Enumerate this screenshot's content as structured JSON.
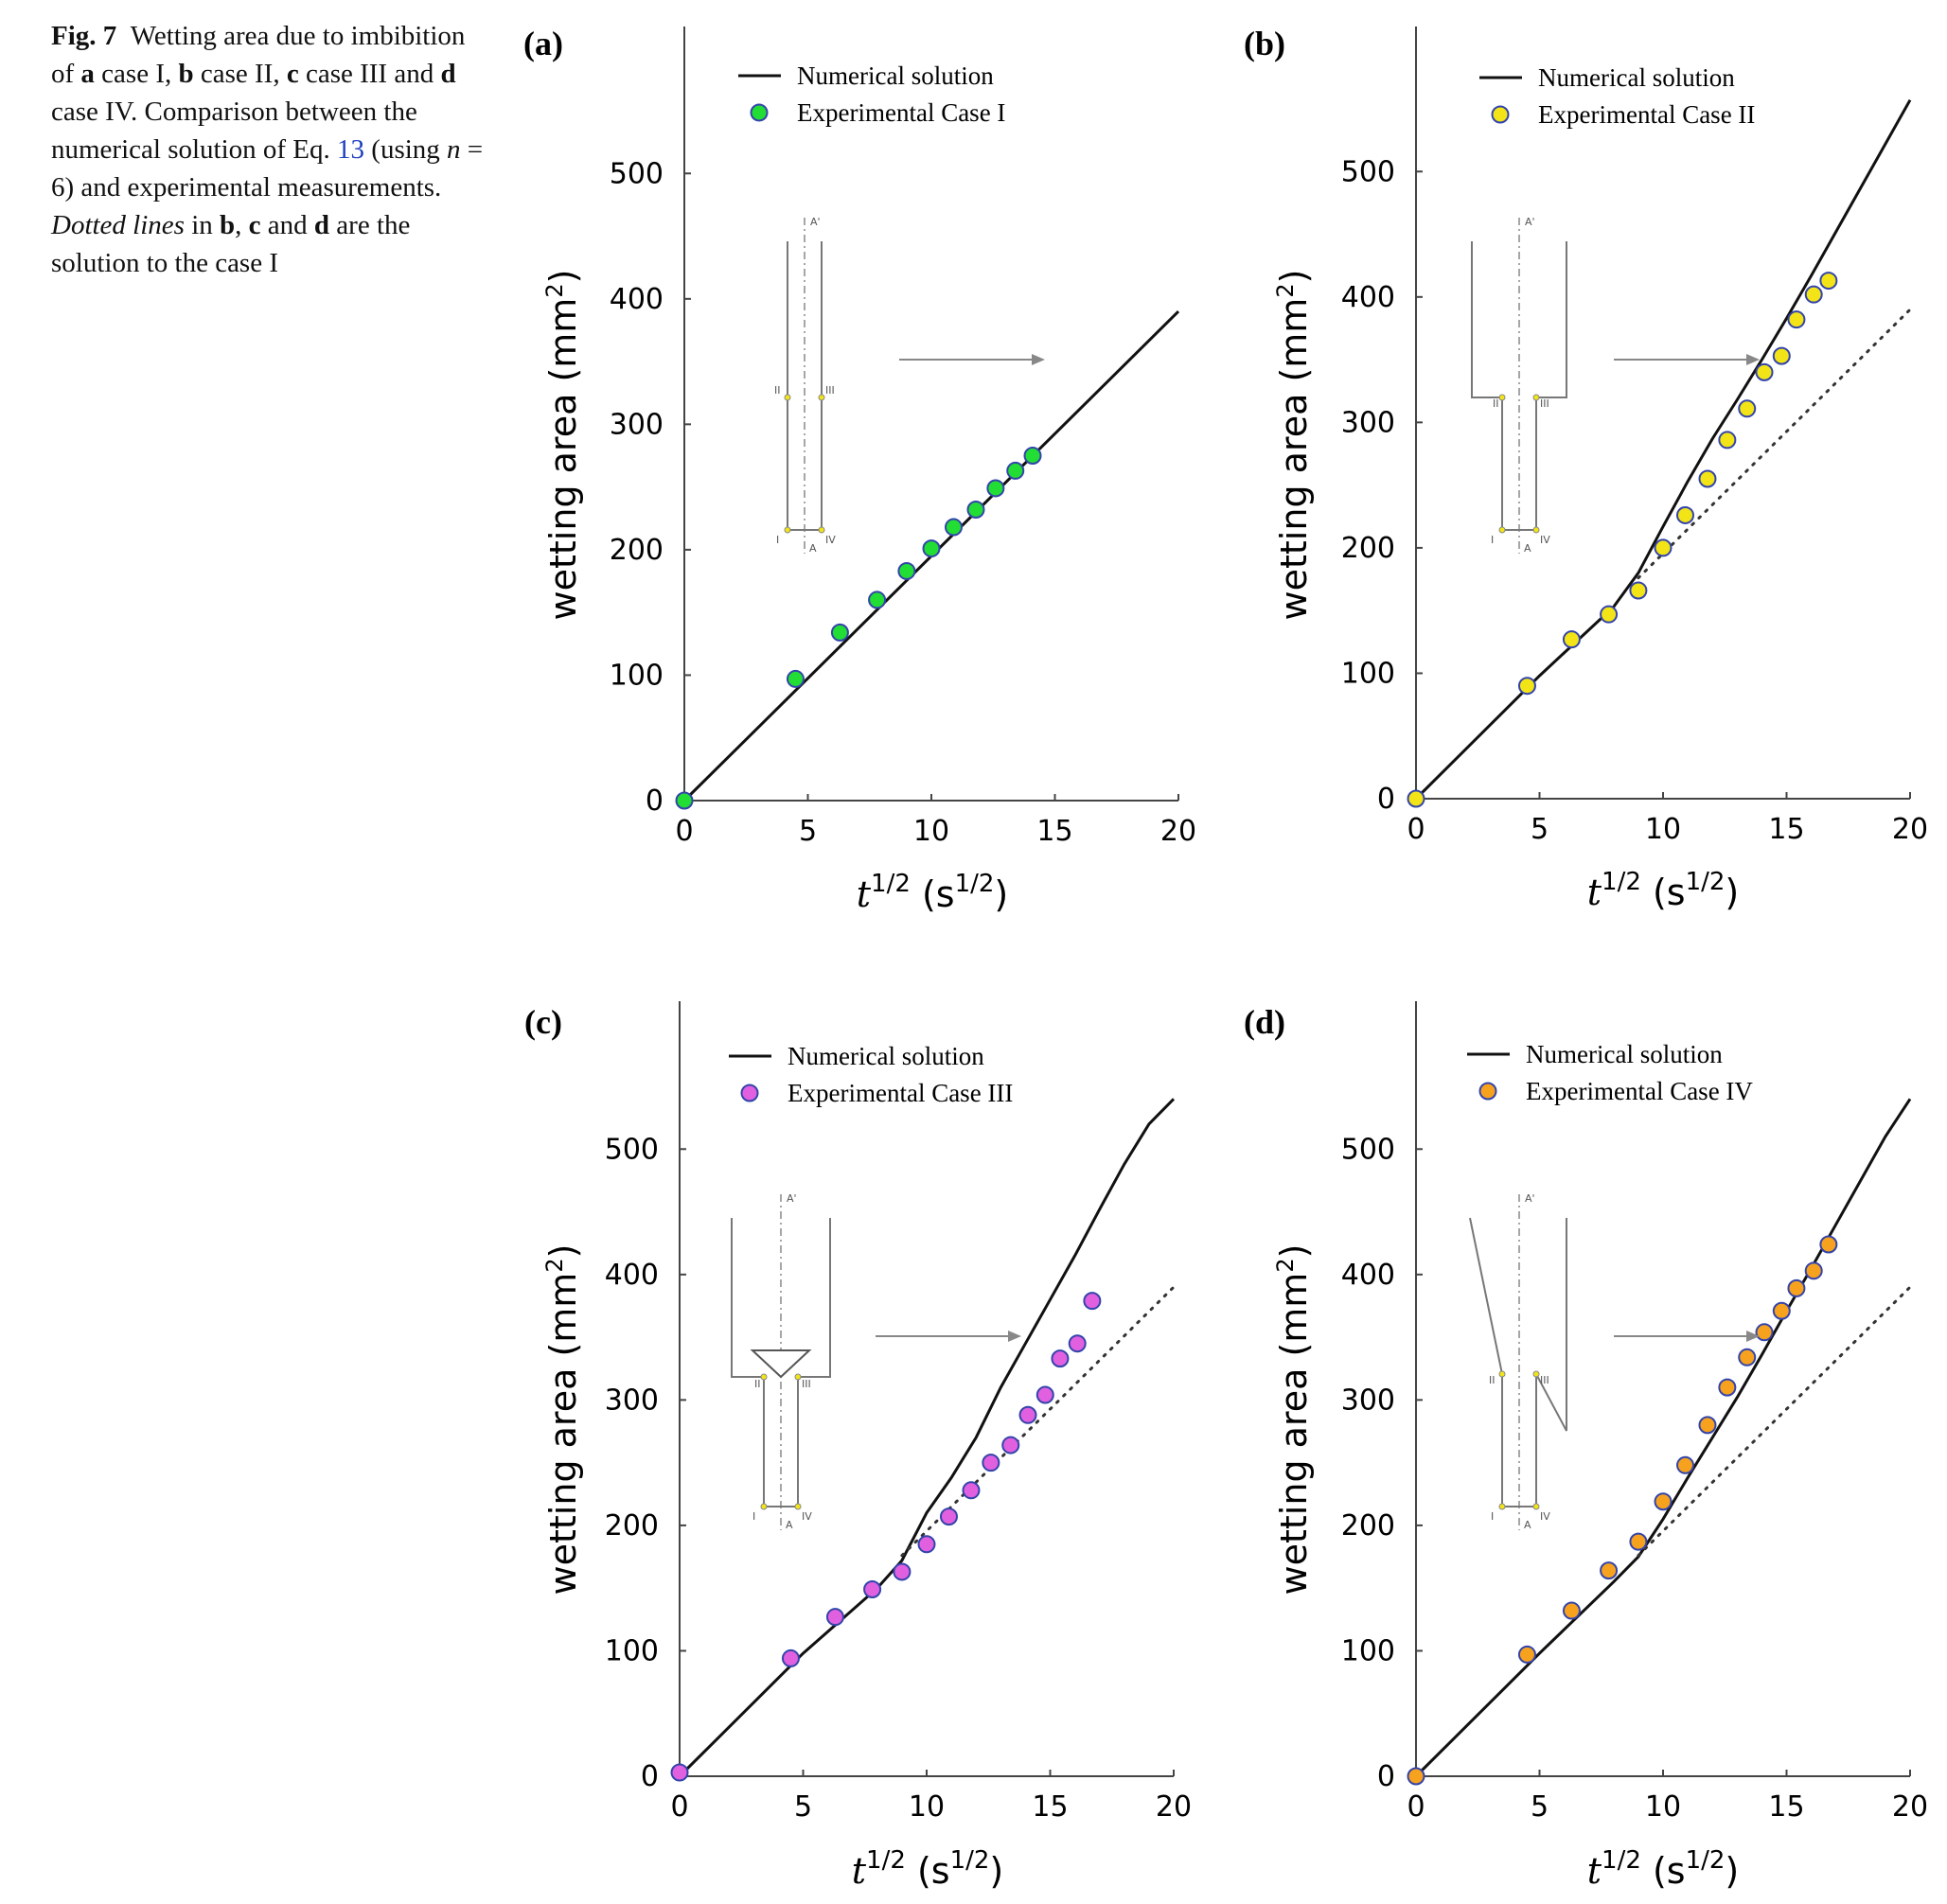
{
  "caption": {
    "fig_label": "Fig. 7",
    "text_1": "Wetting area due to imbibition of ",
    "a": "a",
    "t_a": " case I, ",
    "b": "b",
    "t_b": " case II, ",
    "c": "c",
    "t_c": " case III and ",
    "d": "d",
    "t_d": " case IV. Comparison between the numerical solution of Eq. ",
    "eq": "13",
    "t_eq": " (using ",
    "n": "n",
    "t_n": " = 6) and experimental measurements. ",
    "dotted": "Dotted lines",
    "t_in": " in ",
    "b2": "b",
    "comma": ", ",
    "c2": "c",
    "and": " and ",
    "d2": "d",
    "t_end": " are the solution to the case I"
  },
  "colors": {
    "case_I": "#22dd33",
    "case_II": "#f2e416",
    "case_III": "#e060e0",
    "case_IV": "#f6a21e",
    "marker_edge": "#3344aa",
    "line": "#111111"
  },
  "chart_data": [
    {
      "type": "line",
      "panel": "(a)",
      "xlabel": "t1/2 (s1/2)",
      "ylabel": "wetting area (mm2)",
      "xlim": [
        0,
        20
      ],
      "ylim": [
        0,
        550
      ],
      "xticks": [
        0,
        5,
        10,
        15,
        20
      ],
      "yticks": [
        0,
        100,
        200,
        300,
        400,
        500
      ],
      "legend": [
        "Numerical solution",
        "Experimental Case I"
      ],
      "series": [
        {
          "name": "Numerical solution",
          "style": "solid",
          "x": [
            0,
            20
          ],
          "y": [
            0,
            390
          ]
        },
        {
          "name": "Experimental Case I",
          "style": "markers",
          "color": "#22dd33",
          "x": [
            0,
            4.5,
            6.3,
            7.8,
            9.0,
            10.0,
            10.9,
            11.8,
            12.6,
            13.4,
            14.1
          ],
          "y": [
            0,
            97,
            134,
            160,
            183,
            201,
            218,
            232,
            249,
            263,
            275
          ]
        }
      ]
    },
    {
      "type": "line",
      "panel": "(b)",
      "xlabel": "t1/2 (s1/2)",
      "ylabel": "wetting area (mm2)",
      "xlim": [
        0,
        20
      ],
      "ylim": [
        0,
        550
      ],
      "xticks": [
        0,
        5,
        10,
        15,
        20
      ],
      "yticks": [
        0,
        100,
        200,
        300,
        400,
        500
      ],
      "legend": [
        "Numerical solution",
        "Experimental Case II"
      ],
      "series": [
        {
          "name": "Numerical solution",
          "style": "solid",
          "x": [
            0,
            5,
            8,
            9,
            10,
            11,
            12,
            13,
            14,
            15,
            16,
            17,
            18,
            19,
            20
          ],
          "y": [
            0,
            98,
            153,
            180,
            217,
            253,
            287,
            318,
            350,
            383,
            417,
            452,
            487,
            522,
            557
          ]
        },
        {
          "name": "Case I solution",
          "style": "dotted",
          "x": [
            9,
            20
          ],
          "y": [
            176,
            390
          ]
        },
        {
          "name": "Experimental Case II",
          "style": "markers",
          "color": "#f2e416",
          "x": [
            0,
            4.5,
            6.3,
            7.8,
            9.0,
            10.0,
            10.9,
            11.8,
            12.6,
            13.4,
            14.1,
            14.8,
            15.4,
            16.1,
            16.7
          ],
          "y": [
            0,
            90,
            127,
            147,
            166,
            200,
            226,
            255,
            286,
            311,
            340,
            353,
            382,
            402,
            413
          ]
        }
      ]
    },
    {
      "type": "line",
      "panel": "(c)",
      "xlabel": "t1/2 (s1/2)",
      "ylabel": "wetting area (mm2)",
      "xlim": [
        0,
        20
      ],
      "ylim": [
        0,
        550
      ],
      "xticks": [
        0,
        5,
        10,
        15,
        20
      ],
      "yticks": [
        0,
        100,
        200,
        300,
        400,
        500
      ],
      "legend": [
        "Numerical solution",
        "Experimental Case III"
      ],
      "series": [
        {
          "name": "Numerical solution",
          "style": "solid",
          "x": [
            0,
            5,
            8,
            9,
            10,
            11,
            12,
            13,
            14,
            15,
            16,
            17,
            18,
            19,
            20
          ],
          "y": [
            0,
            98,
            150,
            172,
            210,
            238,
            270,
            310,
            345,
            380,
            415,
            452,
            488,
            520,
            540
          ]
        },
        {
          "name": "Case I solution",
          "style": "dotted",
          "x": [
            9,
            20
          ],
          "y": [
            176,
            390
          ]
        },
        {
          "name": "Experimental Case III",
          "style": "markers",
          "color": "#e060e0",
          "x": [
            0,
            4.5,
            6.3,
            7.8,
            9.0,
            10.0,
            10.9,
            11.8,
            12.6,
            13.4,
            14.1,
            14.8,
            15.4,
            16.1,
            16.7
          ],
          "y": [
            3,
            94,
            127,
            149,
            163,
            185,
            207,
            228,
            250,
            264,
            288,
            304,
            333,
            345,
            379
          ]
        }
      ]
    },
    {
      "type": "line",
      "panel": "(d)",
      "xlabel": "t1/2 (s1/2)",
      "ylabel": "wetting area (mm2)",
      "xlim": [
        0,
        20
      ],
      "ylim": [
        0,
        550
      ],
      "xticks": [
        0,
        5,
        10,
        15,
        20
      ],
      "yticks": [
        0,
        100,
        200,
        300,
        400,
        500
      ],
      "legend": [
        "Numerical solution",
        "Experimental Case IV"
      ],
      "series": [
        {
          "name": "Numerical solution",
          "style": "solid",
          "x": [
            0,
            5,
            8,
            9,
            10,
            11,
            12,
            13,
            14,
            15,
            16,
            17,
            18,
            19,
            20
          ],
          "y": [
            0,
            98,
            155,
            175,
            205,
            238,
            270,
            302,
            336,
            371,
            405,
            440,
            475,
            510,
            540
          ]
        },
        {
          "name": "Case I solution",
          "style": "dotted",
          "x": [
            9,
            20
          ],
          "y": [
            176,
            390
          ]
        },
        {
          "name": "Experimental Case IV",
          "style": "markers",
          "color": "#f6a21e",
          "x": [
            0,
            4.5,
            6.3,
            7.8,
            9.0,
            10.0,
            10.9,
            11.8,
            12.6,
            13.4,
            14.1,
            14.8,
            15.4,
            16.1,
            16.7
          ],
          "y": [
            0,
            97,
            132,
            164,
            187,
            219,
            248,
            280,
            310,
            334,
            354,
            371,
            389,
            403,
            424
          ]
        }
      ]
    }
  ],
  "insets": {
    "labels": {
      "a_top": "A'",
      "a_bot": "A",
      "i": "I",
      "ii": "II",
      "iii": "III",
      "iv": "IV"
    }
  }
}
